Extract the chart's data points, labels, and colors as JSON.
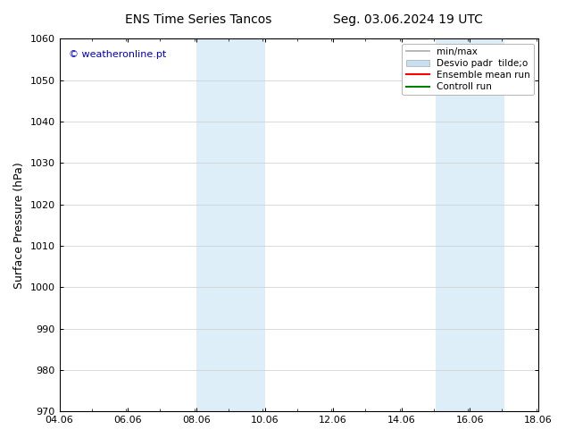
{
  "title_left": "ENS Time Series Tancos",
  "title_right": "Seg. 03.06.2024 19 UTC",
  "ylabel": "Surface Pressure (hPa)",
  "xlim": [
    4.06,
    18.06
  ],
  "ylim": [
    970,
    1060
  ],
  "xticks": [
    4.06,
    6.06,
    8.06,
    10.06,
    12.06,
    14.06,
    16.06,
    18.06
  ],
  "xtick_labels": [
    "04.06",
    "06.06",
    "08.06",
    "10.06",
    "12.06",
    "14.06",
    "16.06",
    "18.06"
  ],
  "yticks": [
    970,
    980,
    990,
    1000,
    1010,
    1020,
    1030,
    1040,
    1050,
    1060
  ],
  "background_color": "#ffffff",
  "shaded_regions": [
    {
      "xmin": 8.06,
      "xmax": 10.06,
      "color": "#ddeef8"
    },
    {
      "xmin": 15.06,
      "xmax": 17.06,
      "color": "#ddeef8"
    }
  ],
  "watermark_text": "© weatheronline.pt",
  "watermark_color": "#0000cc",
  "legend_entries": [
    {
      "label": "min/max",
      "color": "#aaaaaa",
      "lw": 1.2,
      "type": "line"
    },
    {
      "label": "Desvio padr  tilde;o",
      "color": "#c8dff0",
      "type": "patch"
    },
    {
      "label": "Ensemble mean run",
      "color": "#ff0000",
      "lw": 1.5,
      "type": "line"
    },
    {
      "label": "Controll run",
      "color": "#008000",
      "lw": 1.5,
      "type": "line"
    }
  ],
  "title_fontsize": 10,
  "tick_fontsize": 8,
  "ylabel_fontsize": 9,
  "legend_fontsize": 7.5,
  "watermark_fontsize": 8
}
